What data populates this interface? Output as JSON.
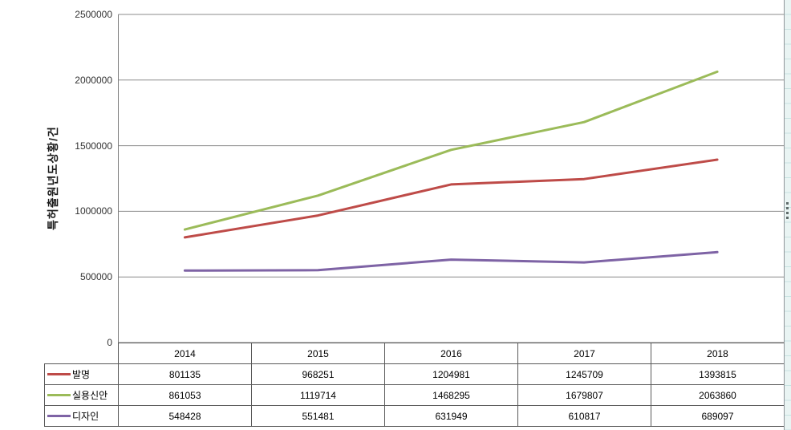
{
  "chart_data": {
    "type": "line",
    "title": "",
    "xlabel": "",
    "ylabel": "특허출원년도상황/건",
    "categories": [
      "2014",
      "2015",
      "2016",
      "2017",
      "2018"
    ],
    "series": [
      {
        "name": "발명",
        "color": "#be4b48",
        "values": [
          801135,
          968251,
          1204981,
          1245709,
          1393815
        ]
      },
      {
        "name": "실용신안",
        "color": "#9bbb59",
        "values": [
          861053,
          1119714,
          1468295,
          1679807,
          2063860
        ]
      },
      {
        "name": "디자인",
        "color": "#7e63a5",
        "values": [
          548428,
          551481,
          631949,
          610817,
          689097
        ]
      }
    ],
    "ylim": [
      0,
      2500000
    ],
    "ytick_interval": 500000,
    "yticks": [
      "0",
      "500000",
      "1000000",
      "1500000",
      "2000000",
      "2500000"
    ],
    "grid": true,
    "legend_position": "table-left-column",
    "gridline_color": "#8b8b8b",
    "axis_line_color": "#7f7f7f",
    "table_border_color": "#595959"
  }
}
